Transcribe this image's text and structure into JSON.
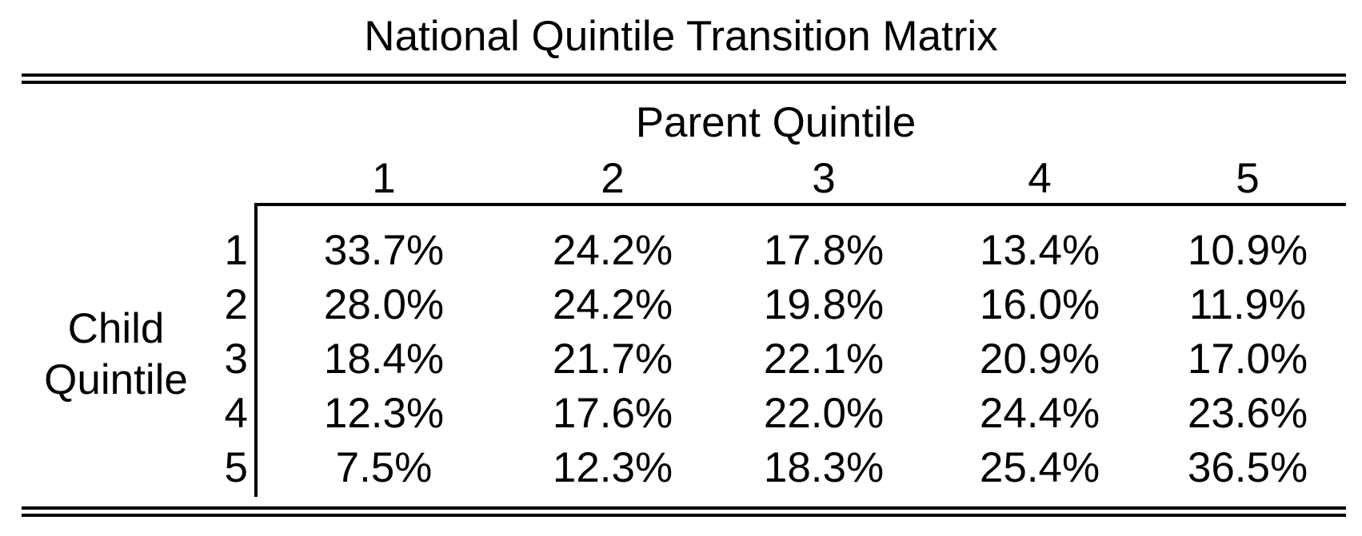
{
  "chart_data": {
    "type": "table",
    "title": "National Quintile Transition Matrix",
    "column_group_label": "Parent Quintile",
    "row_group_label": "Child Quintile",
    "columns": [
      "1",
      "2",
      "3",
      "4",
      "5"
    ],
    "rows": [
      {
        "label": "1",
        "values": [
          "33.7%",
          "24.2%",
          "17.8%",
          "13.4%",
          "10.9%"
        ]
      },
      {
        "label": "2",
        "values": [
          "28.0%",
          "24.2%",
          "19.8%",
          "16.0%",
          "11.9%"
        ]
      },
      {
        "label": "3",
        "values": [
          "18.4%",
          "21.7%",
          "22.1%",
          "20.9%",
          "17.0%"
        ]
      },
      {
        "label": "4",
        "values": [
          "12.3%",
          "17.6%",
          "22.0%",
          "24.4%",
          "23.6%"
        ]
      },
      {
        "label": "5",
        "values": [
          "7.5%",
          "12.3%",
          "18.3%",
          "25.4%",
          "36.5%"
        ]
      }
    ]
  }
}
